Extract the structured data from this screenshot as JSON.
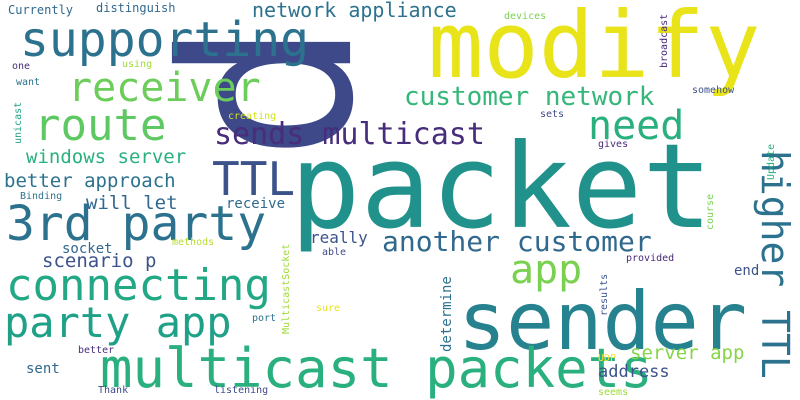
{
  "words": [
    {
      "text": "packet",
      "color": "#21918c"
    },
    {
      "text": "p",
      "color": "#3e4989"
    },
    {
      "text": "modify",
      "color": "#e8e419"
    },
    {
      "text": "sender",
      "color": "#26828e"
    },
    {
      "text": "multicast packets",
      "color": "#2ab07f"
    },
    {
      "text": "supporting",
      "color": "#2c728e"
    },
    {
      "text": "3rd party",
      "color": "#2c728e"
    },
    {
      "text": "connecting",
      "color": "#22a884"
    },
    {
      "text": "party app",
      "color": "#1fa188"
    },
    {
      "text": "receiver",
      "color": "#6ccd5a"
    },
    {
      "text": "route",
      "color": "#5ec962"
    },
    {
      "text": "TTL",
      "color": "#3b528b"
    },
    {
      "text": "need",
      "color": "#2ab07f"
    },
    {
      "text": "app",
      "color": "#7ad151"
    },
    {
      "text": "higher TTL",
      "color": "#2c728e"
    },
    {
      "text": "sends multicast",
      "color": "#472d7b"
    },
    {
      "text": "another customer",
      "color": "#31688e"
    },
    {
      "text": "customer network",
      "color": "#35b779"
    },
    {
      "text": "network appliance",
      "color": "#2c728e"
    },
    {
      "text": "windows server",
      "color": "#2ab07f"
    },
    {
      "text": "better approach",
      "color": "#2c728e"
    },
    {
      "text": "will let",
      "color": "#31688e"
    },
    {
      "text": "scenario p",
      "color": "#3b528b"
    },
    {
      "text": "server app",
      "color": "#86d549"
    },
    {
      "text": "address",
      "color": "#3b528b"
    },
    {
      "text": "really",
      "color": "#3b528b"
    },
    {
      "text": "receive",
      "color": "#31688e"
    },
    {
      "text": "socket",
      "color": "#31688e"
    },
    {
      "text": "determine",
      "color": "#2c728e"
    },
    {
      "text": "end",
      "color": "#3b528b"
    },
    {
      "text": "sent",
      "color": "#31688e"
    },
    {
      "text": "Currently",
      "color": "#31688e"
    },
    {
      "text": "distinguish",
      "color": "#31688e"
    },
    {
      "text": "devices",
      "color": "#7ad151"
    },
    {
      "text": "broadcast",
      "color": "#482878"
    },
    {
      "text": "using",
      "color": "#a0da39"
    },
    {
      "text": "one",
      "color": "#472d7b"
    },
    {
      "text": "want",
      "color": "#2c728e"
    },
    {
      "text": "somehow",
      "color": "#3b528b"
    },
    {
      "text": "unicast",
      "color": "#20a486"
    },
    {
      "text": "creating",
      "color": "#d2e21b"
    },
    {
      "text": "sets",
      "color": "#3e4989"
    },
    {
      "text": "gives",
      "color": "#482878"
    },
    {
      "text": "Update",
      "color": "#2ab07f"
    },
    {
      "text": "course",
      "color": "#7ad151"
    },
    {
      "text": "Binding",
      "color": "#2c728e"
    },
    {
      "text": "methods",
      "color": "#b5de2b"
    },
    {
      "text": "able",
      "color": "#3e4989"
    },
    {
      "text": "provided",
      "color": "#482878"
    },
    {
      "text": "MulticastSocket",
      "color": "#a0da39"
    },
    {
      "text": "port",
      "color": "#2c728e"
    },
    {
      "text": "sure",
      "color": "#e8e419"
    },
    {
      "text": "results",
      "color": "#3b528b"
    },
    {
      "text": "UDP",
      "color": "#fde725"
    },
    {
      "text": "better",
      "color": "#472d7b"
    },
    {
      "text": "Thank",
      "color": "#3e4989"
    },
    {
      "text": "listening",
      "color": "#3e4989"
    },
    {
      "text": "seems",
      "color": "#a0da39"
    }
  ]
}
